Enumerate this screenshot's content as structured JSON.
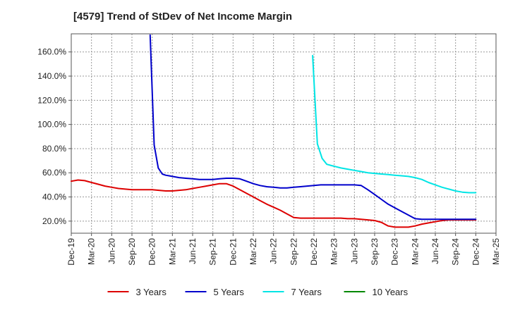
{
  "chart_data": {
    "type": "line",
    "title": "[4579]  Trend of StDev of Net Income Margin",
    "xlabel": "",
    "ylabel": "",
    "ylim": [
      10,
      175
    ],
    "y_ticks": [
      20,
      40,
      60,
      80,
      100,
      120,
      140,
      160
    ],
    "y_tick_labels": [
      "20.0%",
      "40.0%",
      "60.0%",
      "80.0%",
      "100.0%",
      "120.0%",
      "140.0%",
      "160.0%"
    ],
    "x_tick_labels": [
      "Dec-19",
      "Mar-20",
      "Jun-20",
      "Sep-20",
      "Dec-20",
      "Mar-21",
      "Jun-21",
      "Sep-21",
      "Dec-21",
      "Mar-22",
      "Jun-22",
      "Sep-22",
      "Dec-22",
      "Mar-23",
      "Jun-23",
      "Sep-23",
      "Dec-23",
      "Mar-24",
      "Jun-24",
      "Sep-24",
      "Dec-24",
      "Mar-25"
    ],
    "grid": true,
    "legend_position": "bottom",
    "series": [
      {
        "name": "3 Years",
        "color": "#dd0000",
        "x": [
          0,
          1,
          2,
          3,
          4,
          5,
          6,
          7,
          8,
          9,
          10,
          11,
          12,
          13,
          14,
          15,
          16,
          17,
          18,
          19,
          20,
          21,
          22,
          23,
          24,
          25,
          26,
          27,
          28,
          29,
          30,
          31,
          32,
          33,
          34,
          35,
          36,
          37,
          38,
          39,
          40,
          41,
          42,
          43,
          44,
          45,
          46,
          47,
          48,
          49,
          50,
          51,
          52,
          53,
          54,
          55,
          56,
          57,
          58,
          59,
          60
        ],
        "values": [
          53,
          54,
          53.5,
          52,
          50.5,
          49,
          48,
          47,
          46.5,
          46,
          46,
          46,
          46,
          45.5,
          45,
          45,
          45.5,
          46,
          47,
          48,
          49,
          50,
          51,
          51,
          49,
          46,
          43,
          40,
          37,
          34,
          31.5,
          29,
          26,
          23,
          22.5,
          22.5,
          22.5,
          22.5,
          22.5,
          22.5,
          22.5,
          22,
          22,
          21.5,
          21,
          20.5,
          19,
          16,
          15,
          15,
          15,
          16,
          17.5,
          18.5,
          19.5,
          20.5,
          21,
          21,
          21,
          21,
          21
        ]
      },
      {
        "name": "5 Years",
        "color": "#0000cc",
        "x": [
          11.7,
          12.3,
          12.9,
          13.5,
          14,
          14.5,
          15,
          16,
          17,
          18,
          19,
          20,
          21,
          22,
          23,
          24,
          25,
          26,
          27,
          28,
          29,
          30,
          31,
          32,
          33,
          34,
          35,
          36,
          37,
          38,
          39,
          40,
          41,
          42,
          43,
          44,
          45,
          46,
          47,
          48,
          49,
          50,
          51,
          52,
          53,
          54,
          55,
          56,
          57,
          58,
          59,
          60
        ],
        "values": [
          174,
          83,
          64,
          59,
          58,
          57.5,
          57,
          56,
          55.5,
          55,
          54.5,
          54.5,
          54.5,
          55,
          55.5,
          55.5,
          55,
          53,
          51,
          49.5,
          48.5,
          48,
          47.5,
          47.5,
          48,
          48.5,
          49,
          49.5,
          50,
          50,
          50,
          50,
          50,
          50,
          49.5,
          46,
          42,
          38,
          34,
          31,
          28,
          25,
          22,
          21.5,
          21.5,
          21.5,
          21.5,
          21.5,
          21.5,
          21.5,
          21.5,
          21.5
        ]
      },
      {
        "name": "7 Years",
        "color": "#00e5e5",
        "x": [
          35.8,
          36.5,
          37.2,
          37.9,
          38.6,
          39.3,
          40,
          41,
          42,
          43,
          44,
          45,
          46,
          47,
          48,
          49,
          50,
          51,
          52,
          53,
          54,
          55,
          56,
          57,
          58,
          59,
          60
        ],
        "values": [
          157,
          84,
          72,
          67,
          66,
          65,
          64,
          63,
          62,
          61,
          60,
          59.5,
          59,
          58.5,
          58,
          57.5,
          57,
          56,
          54.5,
          52,
          50,
          48,
          46.5,
          45,
          44,
          43.5,
          43.5
        ]
      },
      {
        "name": "10 Years",
        "color": "#008800",
        "x": [],
        "values": []
      }
    ]
  }
}
